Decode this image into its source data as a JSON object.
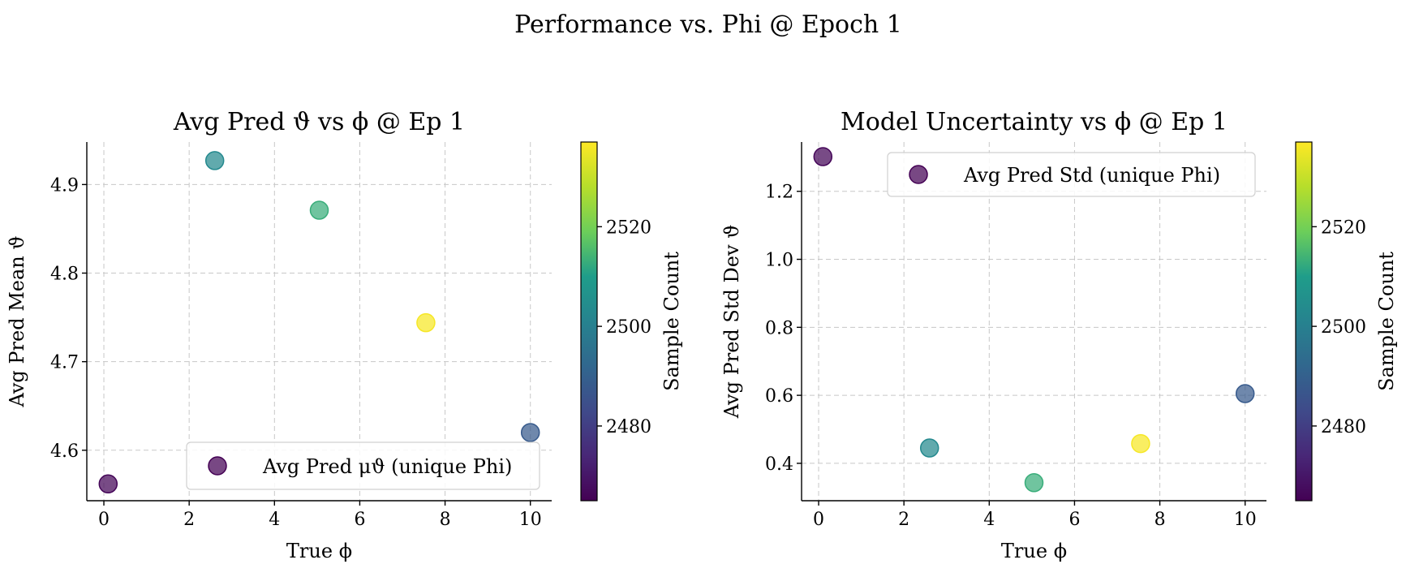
{
  "figure": {
    "title": "Performance vs. Phi @ Epoch 1"
  },
  "colormap": [
    "#440154",
    "#482777",
    "#3f4a8a",
    "#31678e",
    "#26838f",
    "#1f9d8a",
    "#6cce5a",
    "#b6de2b",
    "#fee825"
  ],
  "chart_data": [
    {
      "type": "scatter",
      "title": "Avg Pred ϑ vs ϕ @ Ep 1",
      "xlabel": "True ϕ",
      "ylabel": "Avg Pred Mean ϑ",
      "xlim": [
        -0.4,
        10.5
      ],
      "ylim": [
        4.543,
        4.948
      ],
      "xticks": [
        0,
        2,
        4,
        6,
        8,
        10
      ],
      "yticks": [
        4.6,
        4.7,
        4.8,
        4.9
      ],
      "grid": true,
      "legend": {
        "label": "Avg Pred μϑ (unique Phi)",
        "placement": "lower-right"
      },
      "colorbar": {
        "label": "Sample Count",
        "range": [
          2465,
          2537
        ],
        "ticks": [
          2480,
          2500,
          2520
        ]
      },
      "series": [
        {
          "name": "Avg Pred μϑ (unique Phi)",
          "x": [
            0.1,
            2.6,
            5.05,
            7.55,
            10.0
          ],
          "y": [
            4.562,
            4.927,
            4.871,
            4.744,
            4.62
          ],
          "count": [
            2466,
            2503,
            2513,
            2536,
            2488
          ]
        }
      ]
    },
    {
      "type": "scatter",
      "title": "Model Uncertainty vs ϕ @ Ep 1",
      "xlabel": "True ϕ",
      "ylabel": "Avg Pred Std Dev ϑ",
      "xlim": [
        -0.4,
        10.5
      ],
      "ylim": [
        0.29,
        1.345
      ],
      "xticks": [
        0,
        2,
        4,
        6,
        8,
        10
      ],
      "yticks": [
        0.4,
        0.6,
        0.8,
        1.0,
        1.2
      ],
      "grid": true,
      "legend": {
        "label": "Avg Pred Std (unique Phi)",
        "placement": "upper-right"
      },
      "colorbar": {
        "label": "Sample Count",
        "range": [
          2465,
          2537
        ],
        "ticks": [
          2480,
          2500,
          2520
        ]
      },
      "series": [
        {
          "name": "Avg Pred Std (unique Phi)",
          "x": [
            0.1,
            2.6,
            5.05,
            7.55,
            10.0
          ],
          "y": [
            1.302,
            0.445,
            0.343,
            0.458,
            0.605
          ],
          "count": [
            2466,
            2503,
            2513,
            2536,
            2488
          ]
        }
      ]
    }
  ]
}
